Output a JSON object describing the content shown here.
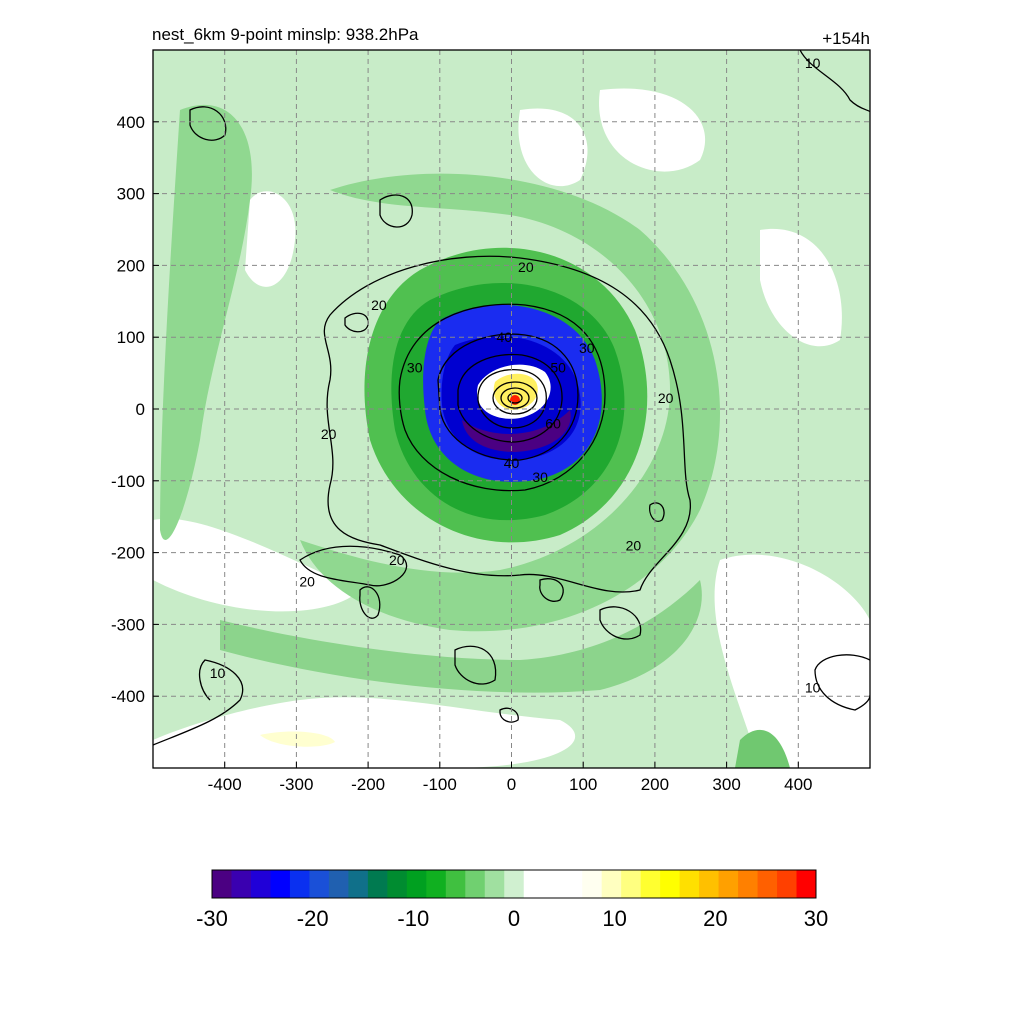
{
  "chart_data": {
    "type": "heatmap",
    "title": "nest_6km  9-point minslp: 938.2hPa",
    "forecast_hour": "+154h",
    "xlim": [
      -500,
      500
    ],
    "ylim": [
      -500,
      500
    ],
    "x_ticks": [
      -400,
      -300,
      -200,
      -100,
      0,
      100,
      200,
      300,
      400
    ],
    "y_ticks": [
      400,
      300,
      200,
      100,
      0,
      -100,
      -200,
      -300,
      -400
    ],
    "grid": true,
    "colorbar": {
      "range": [
        -30,
        30
      ],
      "ticks": [
        -30,
        -20,
        -10,
        0,
        10,
        20,
        30
      ],
      "colors": [
        "#4b0082",
        "#3a00b0",
        "#2000d8",
        "#0000ff",
        "#0a30f0",
        "#1a50d8",
        "#2060b0",
        "#10708a",
        "#007a50",
        "#008c30",
        "#00a020",
        "#10b020",
        "#40c040",
        "#70d070",
        "#a0e0a0",
        "#d0f0d0",
        "#ffffff",
        "#ffffff",
        "#ffffff",
        "#fffff0",
        "#ffffc0",
        "#ffff80",
        "#ffff30",
        "#ffff00",
        "#ffe000",
        "#ffc000",
        "#ffa000",
        "#ff8000",
        "#ff6000",
        "#ff4000",
        "#ff0000"
      ]
    },
    "contour_levels": [
      10,
      20,
      30,
      40,
      50,
      60
    ],
    "contour_labels": [
      {
        "text": "10",
        "x": 420,
        "y": 482
      },
      {
        "text": "10",
        "x": -410,
        "y": -368
      },
      {
        "text": "10",
        "x": 420,
        "y": -388
      },
      {
        "text": "20",
        "x": 20,
        "y": 198
      },
      {
        "text": "20",
        "x": -185,
        "y": 145
      },
      {
        "text": "20",
        "x": -255,
        "y": -35
      },
      {
        "text": "20",
        "x": 215,
        "y": 15
      },
      {
        "text": "20",
        "x": 170,
        "y": -190
      },
      {
        "text": "20",
        "x": -160,
        "y": -210
      },
      {
        "text": "20",
        "x": -285,
        "y": -240
      },
      {
        "text": "30",
        "x": -135,
        "y": 58
      },
      {
        "text": "30",
        "x": 105,
        "y": 85
      },
      {
        "text": "30",
        "x": 40,
        "y": -95
      },
      {
        "text": "40",
        "x": -10,
        "y": 100
      },
      {
        "text": "40",
        "x": 0,
        "y": -75
      },
      {
        "text": "50",
        "x": 65,
        "y": 58
      },
      {
        "text": "60",
        "x": 58,
        "y": -20
      }
    ],
    "minimum_pressure_center": {
      "x": 5,
      "y": 12
    }
  }
}
